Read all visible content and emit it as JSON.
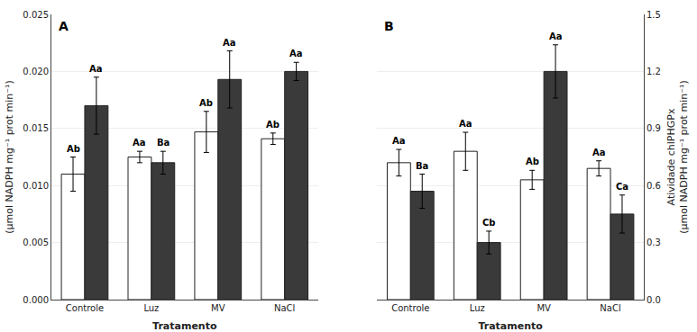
{
  "chart_data": [
    {
      "type": "bar",
      "categories": [
        "Controle",
        "Luz",
        "MV",
        "NaCl"
      ],
      "series": [
        {
          "color": "white",
          "values": [
            0.011,
            0.0125,
            0.0147,
            0.0141
          ],
          "errors": [
            0.0015,
            0.0005,
            0.0018,
            0.0005
          ],
          "labels": [
            "Ab",
            "Aa",
            "Ab",
            "Ab"
          ]
        },
        {
          "color": "#3a3a3a",
          "values": [
            0.017,
            0.012,
            0.0193,
            0.02
          ],
          "errors": [
            0.0025,
            0.001,
            0.0025,
            0.0008
          ],
          "labels": [
            "Aa",
            "Ba",
            "Aa",
            "Aa"
          ]
        }
      ],
      "xlabel": "Tratamento",
      "ylabel": "(μmol NADPH mg⁻¹ prot min⁻¹)",
      "ylim": [
        0.0,
        0.025
      ],
      "yticks": [
        {
          "value": 0.0,
          "label": "0.000"
        },
        0.005,
        {
          "value": 0.01,
          "label": "0.010"
        },
        0.015,
        {
          "value": 0.02,
          "label": "0.020"
        },
        0.025
      ],
      "annotations": [
        "A"
      ]
    },
    {
      "type": "bar",
      "categories": [
        "Controle",
        "Luz",
        "MV",
        "NaCl"
      ],
      "series": [
        {
          "color": "white",
          "values": [
            0.72,
            0.78,
            0.63,
            0.69
          ],
          "errors": [
            0.07,
            0.1,
            0.05,
            0.04
          ],
          "labels": [
            "Aa",
            "Aa",
            "Ab",
            "Aa"
          ]
        },
        {
          "color": "#3a3a3a",
          "values": [
            0.57,
            0.3,
            1.2,
            0.45
          ],
          "errors": [
            0.09,
            0.06,
            0.14,
            0.1
          ],
          "labels": [
            "Ba",
            "Cb",
            "Aa",
            "Ca"
          ]
        }
      ],
      "xlabel": "Tratamento",
      "ylabel": [
        "Atividade chlPHGPx",
        "(μmol NADPH mg⁻¹ prot min⁻¹)"
      ],
      "ylim": [
        0.0,
        1.5
      ],
      "yticks": [
        {
          "value": 0.0,
          "label": "0.0"
        },
        0.3,
        0.6,
        0.9,
        1.2,
        1.5
      ],
      "annotations": [
        "B"
      ]
    }
  ]
}
